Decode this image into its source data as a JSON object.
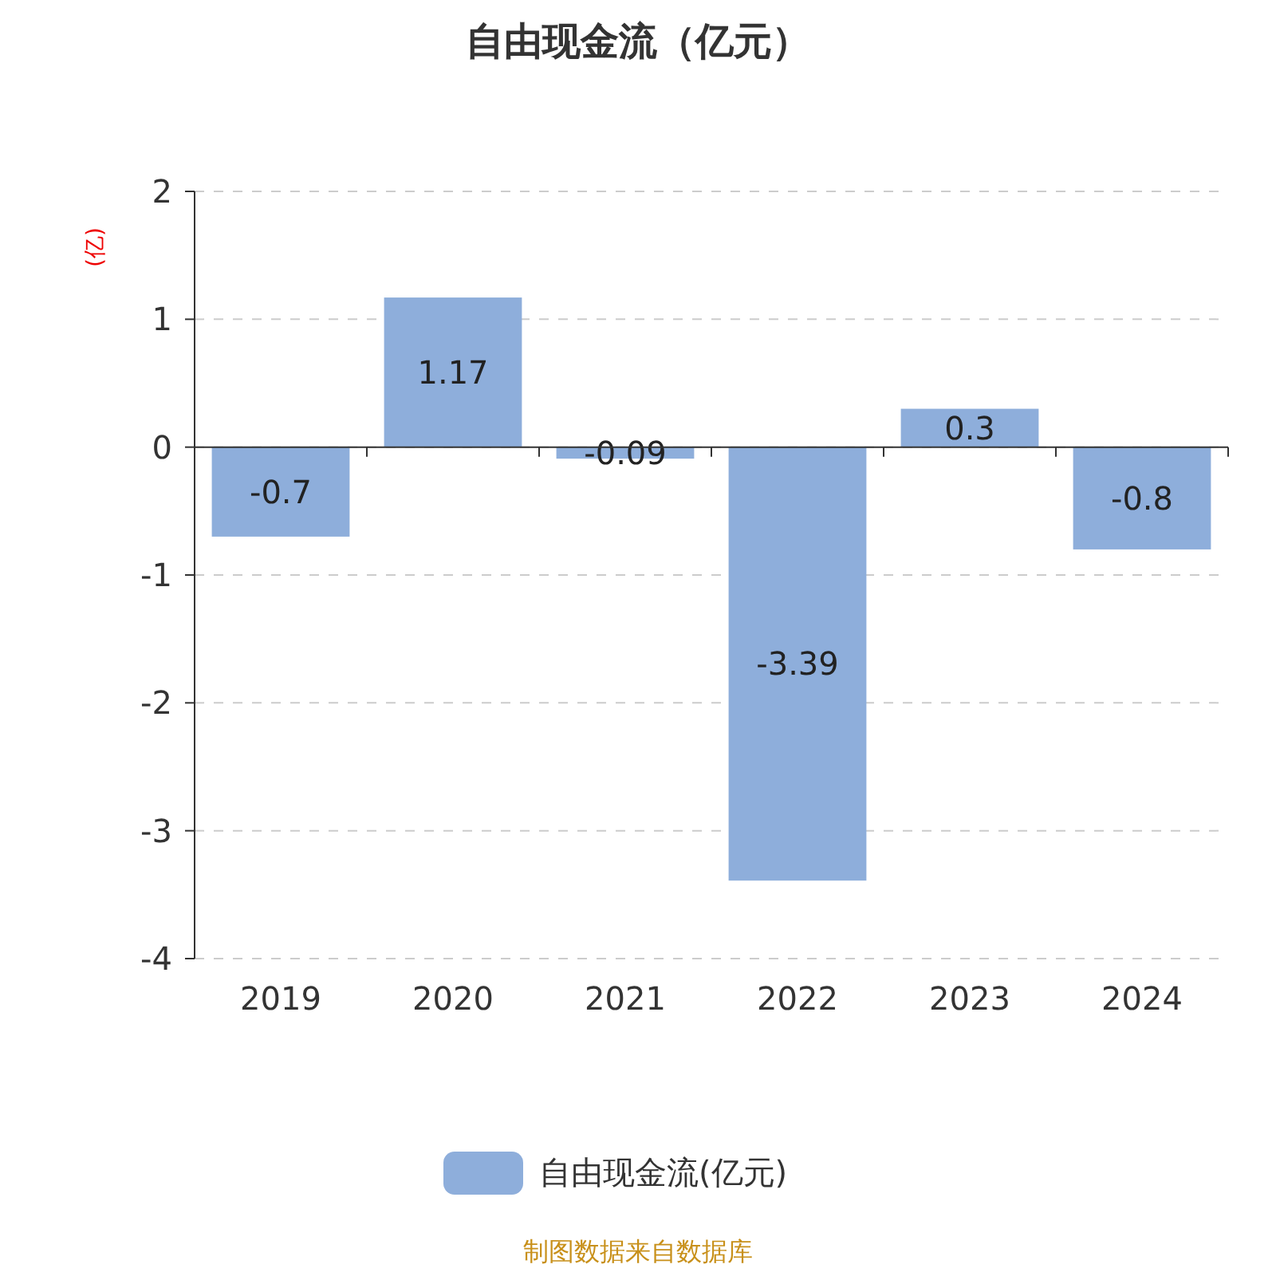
{
  "chart_data": {
    "type": "bar",
    "title": "自由现金流（亿元）",
    "ylabel": "(亿)",
    "categories": [
      "2019",
      "2020",
      "2021",
      "2022",
      "2023",
      "2024"
    ],
    "series": [
      {
        "name": "自由现金流(亿元)",
        "color": "#8eaedb",
        "values": [
          -0.7,
          1.17,
          -0.09,
          -3.39,
          0.3,
          -0.8
        ]
      }
    ],
    "ylim": [
      -4,
      2
    ],
    "yticks": [
      -4,
      -3,
      -2,
      -1,
      0,
      1,
      2
    ],
    "grid": "y",
    "legend": "bottom",
    "data_labels": true,
    "annotations": [
      "制图数据来自数据库"
    ]
  }
}
